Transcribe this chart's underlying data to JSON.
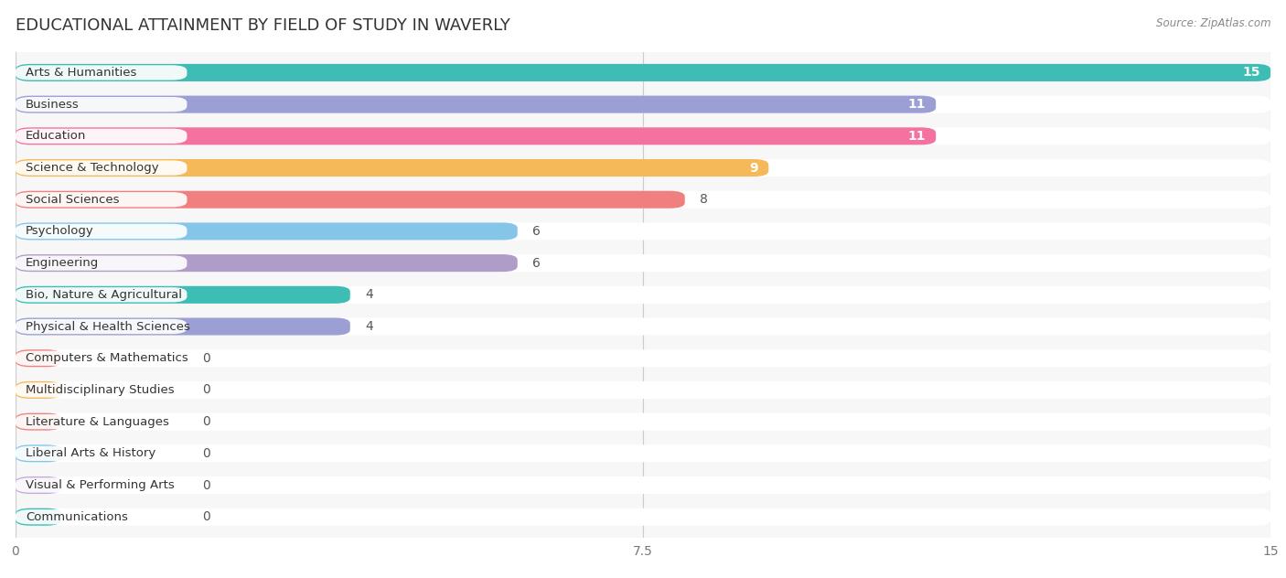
{
  "title": "EDUCATIONAL ATTAINMENT BY FIELD OF STUDY IN WAVERLY",
  "source": "Source: ZipAtlas.com",
  "categories": [
    "Arts & Humanities",
    "Business",
    "Education",
    "Science & Technology",
    "Social Sciences",
    "Psychology",
    "Engineering",
    "Bio, Nature & Agricultural",
    "Physical & Health Sciences",
    "Computers & Mathematics",
    "Multidisciplinary Studies",
    "Literature & Languages",
    "Liberal Arts & History",
    "Visual & Performing Arts",
    "Communications"
  ],
  "values": [
    15,
    11,
    11,
    9,
    8,
    6,
    6,
    4,
    4,
    0,
    0,
    0,
    0,
    0,
    0
  ],
  "colors": [
    "#3dbdb4",
    "#9b9fd4",
    "#f472a0",
    "#f5b95a",
    "#f08080",
    "#85c5e8",
    "#b09cc8",
    "#3dbdb4",
    "#9b9fd4",
    "#f08080",
    "#f5b95a",
    "#f08080",
    "#85c5e8",
    "#c8a8d8",
    "#3dbdb4"
  ],
  "xlim": [
    0,
    15
  ],
  "xticks": [
    0,
    7.5,
    15
  ],
  "background_color": "#ffffff",
  "row_bg_color": "#efefef",
  "bar_bg_color": "#e0e0e0",
  "title_fontsize": 13,
  "label_fontsize": 9.5,
  "value_fontsize": 9.5
}
